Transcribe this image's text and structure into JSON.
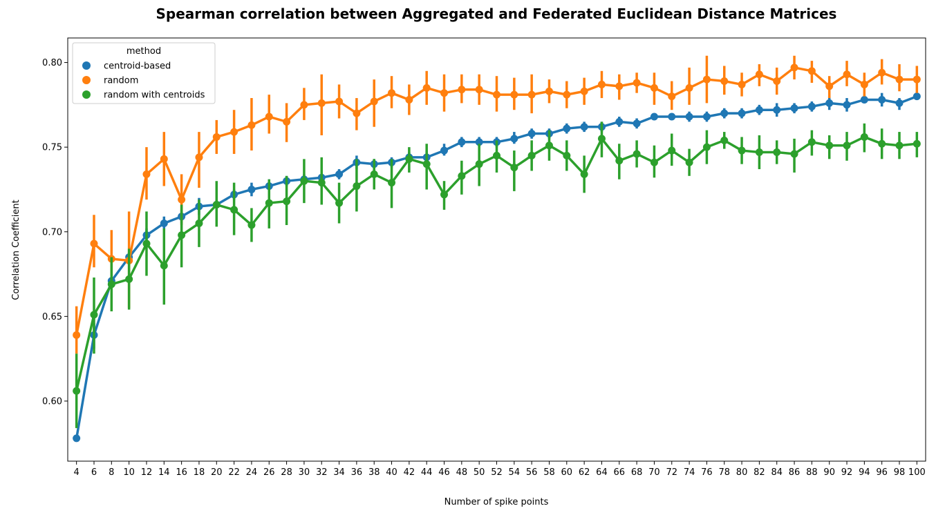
{
  "chart_data": {
    "type": "line",
    "title": "Spearman correlation between Aggregated and Federated Euclidean Distance Matrices",
    "xlabel": "Number of spike points",
    "ylabel": "Correlation Coefficient",
    "x": [
      4,
      6,
      8,
      10,
      12,
      14,
      16,
      18,
      20,
      22,
      24,
      26,
      28,
      30,
      32,
      34,
      36,
      38,
      40,
      42,
      44,
      46,
      48,
      50,
      52,
      54,
      56,
      58,
      60,
      62,
      64,
      66,
      68,
      70,
      72,
      74,
      76,
      78,
      80,
      82,
      84,
      86,
      88,
      90,
      92,
      94,
      96,
      98,
      100
    ],
    "ylim": [
      0.5645,
      0.8145
    ],
    "yticks": [
      0.6,
      0.65,
      0.7,
      0.75,
      0.8
    ],
    "ytick_labels": [
      "0.60",
      "0.65",
      "0.70",
      "0.75",
      "0.80"
    ],
    "grid": false,
    "legend": {
      "title": "method",
      "placement": "top-left"
    },
    "series": [
      {
        "name": "centroid-based",
        "color": "#1f77b4",
        "values": [
          0.578,
          0.639,
          0.671,
          0.685,
          0.698,
          0.705,
          0.709,
          0.715,
          0.716,
          0.722,
          0.725,
          0.727,
          0.73,
          0.731,
          0.732,
          0.734,
          0.741,
          0.74,
          0.741,
          0.744,
          0.744,
          0.748,
          0.753,
          0.753,
          0.753,
          0.755,
          0.758,
          0.758,
          0.761,
          0.762,
          0.762,
          0.765,
          0.764,
          0.768,
          0.768,
          0.768,
          0.768,
          0.77,
          0.77,
          0.772,
          0.772,
          0.773,
          0.774,
          0.776,
          0.775,
          0.778,
          0.778,
          0.776,
          0.78
        ],
        "lower": [
          0.577,
          0.631,
          0.667,
          0.682,
          0.694,
          0.701,
          0.705,
          0.71,
          0.713,
          0.719,
          0.721,
          0.724,
          0.727,
          0.728,
          0.729,
          0.731,
          0.737,
          0.737,
          0.738,
          0.741,
          0.74,
          0.745,
          0.75,
          0.75,
          0.75,
          0.752,
          0.755,
          0.755,
          0.758,
          0.759,
          0.759,
          0.762,
          0.761,
          0.766,
          0.766,
          0.765,
          0.765,
          0.767,
          0.767,
          0.769,
          0.768,
          0.77,
          0.771,
          0.772,
          0.771,
          0.776,
          0.774,
          0.772,
          0.778
        ],
        "upper": [
          0.579,
          0.646,
          0.675,
          0.688,
          0.702,
          0.709,
          0.713,
          0.72,
          0.719,
          0.725,
          0.729,
          0.731,
          0.733,
          0.734,
          0.735,
          0.737,
          0.745,
          0.743,
          0.744,
          0.747,
          0.748,
          0.752,
          0.756,
          0.756,
          0.756,
          0.759,
          0.761,
          0.761,
          0.764,
          0.765,
          0.765,
          0.768,
          0.767,
          0.77,
          0.77,
          0.771,
          0.771,
          0.773,
          0.773,
          0.775,
          0.776,
          0.776,
          0.777,
          0.78,
          0.779,
          0.781,
          0.782,
          0.779,
          0.782
        ]
      },
      {
        "name": "random",
        "color": "#ff7f0e",
        "values": [
          0.639,
          0.693,
          0.684,
          0.683,
          0.734,
          0.743,
          0.719,
          0.744,
          0.756,
          0.759,
          0.763,
          0.768,
          0.765,
          0.775,
          0.776,
          0.777,
          0.77,
          0.777,
          0.782,
          0.778,
          0.785,
          0.782,
          0.784,
          0.784,
          0.781,
          0.781,
          0.781,
          0.783,
          0.781,
          0.783,
          0.787,
          0.786,
          0.788,
          0.785,
          0.78,
          0.785,
          0.79,
          0.789,
          0.787,
          0.793,
          0.789,
          0.797,
          0.795,
          0.786,
          0.793,
          0.787,
          0.794,
          0.79,
          0.79
        ],
        "lower": [
          0.628,
          0.679,
          0.668,
          0.655,
          0.719,
          0.727,
          0.704,
          0.726,
          0.746,
          0.746,
          0.748,
          0.758,
          0.753,
          0.766,
          0.757,
          0.767,
          0.76,
          0.762,
          0.773,
          0.769,
          0.775,
          0.771,
          0.776,
          0.775,
          0.771,
          0.772,
          0.77,
          0.776,
          0.773,
          0.775,
          0.779,
          0.778,
          0.782,
          0.775,
          0.772,
          0.775,
          0.776,
          0.781,
          0.78,
          0.786,
          0.781,
          0.79,
          0.788,
          0.779,
          0.786,
          0.78,
          0.787,
          0.783,
          0.782
        ],
        "upper": [
          0.656,
          0.71,
          0.701,
          0.712,
          0.75,
          0.759,
          0.734,
          0.759,
          0.766,
          0.772,
          0.779,
          0.781,
          0.776,
          0.785,
          0.793,
          0.787,
          0.779,
          0.79,
          0.792,
          0.787,
          0.795,
          0.793,
          0.793,
          0.793,
          0.792,
          0.791,
          0.793,
          0.79,
          0.789,
          0.791,
          0.795,
          0.793,
          0.794,
          0.794,
          0.789,
          0.797,
          0.804,
          0.798,
          0.794,
          0.799,
          0.797,
          0.804,
          0.801,
          0.792,
          0.801,
          0.794,
          0.802,
          0.799,
          0.798
        ]
      },
      {
        "name": "random with centroids",
        "color": "#2ca02c",
        "values": [
          0.606,
          0.651,
          0.669,
          0.672,
          0.693,
          0.68,
          0.698,
          0.705,
          0.716,
          0.713,
          0.704,
          0.717,
          0.718,
          0.73,
          0.729,
          0.717,
          0.727,
          0.734,
          0.729,
          0.743,
          0.74,
          0.722,
          0.733,
          0.74,
          0.745,
          0.738,
          0.745,
          0.751,
          0.745,
          0.734,
          0.755,
          0.742,
          0.746,
          0.741,
          0.748,
          0.741,
          0.75,
          0.754,
          0.748,
          0.747,
          0.747,
          0.746,
          0.753,
          0.751,
          0.751,
          0.756,
          0.752,
          0.751,
          0.752
        ],
        "lower": [
          0.584,
          0.628,
          0.653,
          0.654,
          0.674,
          0.657,
          0.679,
          0.691,
          0.703,
          0.698,
          0.694,
          0.702,
          0.704,
          0.717,
          0.716,
          0.705,
          0.712,
          0.725,
          0.714,
          0.735,
          0.725,
          0.713,
          0.722,
          0.727,
          0.735,
          0.724,
          0.736,
          0.742,
          0.736,
          0.723,
          0.744,
          0.731,
          0.738,
          0.732,
          0.739,
          0.733,
          0.74,
          0.749,
          0.74,
          0.737,
          0.74,
          0.735,
          0.745,
          0.743,
          0.742,
          0.747,
          0.743,
          0.743,
          0.744
        ],
        "upper": [
          0.628,
          0.673,
          0.685,
          0.69,
          0.712,
          0.702,
          0.716,
          0.719,
          0.73,
          0.729,
          0.714,
          0.731,
          0.733,
          0.743,
          0.744,
          0.729,
          0.743,
          0.743,
          0.743,
          0.75,
          0.752,
          0.73,
          0.742,
          0.752,
          0.754,
          0.748,
          0.754,
          0.76,
          0.754,
          0.745,
          0.765,
          0.752,
          0.754,
          0.751,
          0.758,
          0.749,
          0.76,
          0.759,
          0.756,
          0.757,
          0.754,
          0.755,
          0.76,
          0.757,
          0.759,
          0.764,
          0.761,
          0.759,
          0.759
        ]
      }
    ]
  }
}
